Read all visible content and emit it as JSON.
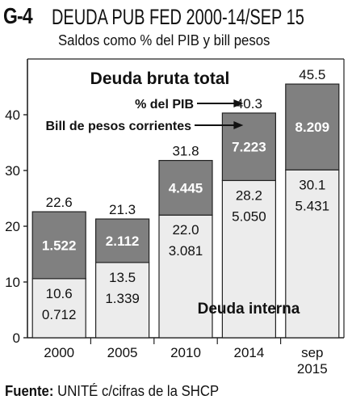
{
  "header": {
    "code": "G-4",
    "title": "DEUDA PUB FED 2000-14/SEP 15",
    "subtitle": "Saldos como % del PIB y bill pesos"
  },
  "source": {
    "label": "Fuente:",
    "text": "UNITÉ c/cifras de la SHCP"
  },
  "colors": {
    "internal": "#ececec",
    "external": "#808080",
    "outline": "#222222"
  },
  "chart_data": {
    "type": "bar",
    "stacked": true,
    "title": "Deuda bruta total",
    "categories": [
      "2000",
      "2005",
      "2010",
      "2014",
      "sep\n2015"
    ],
    "series": [
      {
        "name": "Deuda interna",
        "values": [
          10.6,
          13.5,
          22.0,
          28.2,
          30.1
        ],
        "bill_pesos": [
          "0.712",
          "1.339",
          "3.081",
          "5.050",
          "5.431"
        ]
      },
      {
        "name": "",
        "values": [
          12.0,
          7.8,
          9.8,
          12.1,
          15.4
        ],
        "bill_pesos": [
          "1.522",
          "2.112",
          "4.445",
          "7.223",
          "8.209"
        ]
      }
    ],
    "totals": [
      "22.6",
      "21.3",
      "31.8",
      "40.3",
      "45.5"
    ],
    "ylim": [
      0,
      50
    ],
    "yticks": [
      0,
      10,
      20,
      30,
      40
    ],
    "annotations": [
      "% del PIB",
      "Bill de pesos corrientes"
    ],
    "xlabel": "",
    "ylabel": "",
    "grid": false
  }
}
